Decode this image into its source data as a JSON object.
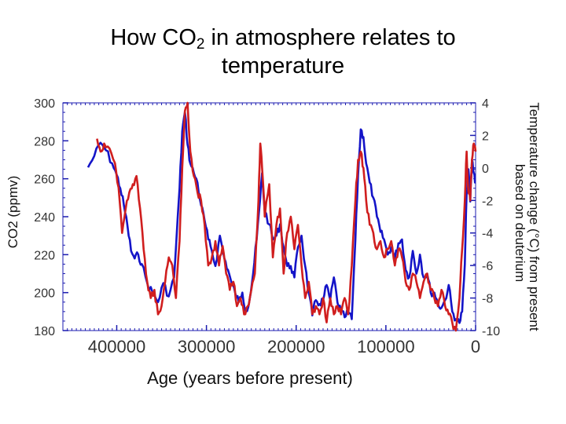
{
  "page": {
    "title_part1": "How CO",
    "title_sub": "2",
    "title_part2": " in atmosphere relates to",
    "title_line2": "temperature"
  },
  "chart_data": {
    "type": "line",
    "xlabel": "Age (years before present)",
    "ylabel_left": "CO2 (ppmv)",
    "ylabel_right_line1": "Temperature change (°C) from present",
    "ylabel_right_line2": "based on deuterium",
    "xlim": [
      460000,
      0
    ],
    "ylim_left": [
      180,
      300
    ],
    "ylim_right": [
      -10,
      4
    ],
    "x_ticks": [
      400000,
      300000,
      200000,
      100000,
      0
    ],
    "x_tick_labels": [
      "400000",
      "300000",
      "200000",
      "100000",
      "0"
    ],
    "y_left_ticks": [
      300,
      280,
      260,
      240,
      220,
      200,
      180
    ],
    "y_left_tick_labels": [
      "300",
      "280",
      "260",
      "240",
      "220",
      "200",
      "180"
    ],
    "y_right_ticks": [
      4,
      2,
      0,
      -2,
      -4,
      -6,
      -8,
      -10
    ],
    "y_right_tick_labels": [
      "4",
      "2",
      "0",
      "-2",
      "-4",
      "-6",
      "-8",
      "-10"
    ],
    "series": [
      {
        "name": "CO2",
        "axis": "left",
        "color": "#1414c8",
        "x": [
          432000,
          425000,
          418000,
          412000,
          405000,
          400000,
          396000,
          392000,
          388000,
          384000,
          380000,
          376000,
          372000,
          366000,
          360000,
          354000,
          348000,
          342000,
          336000,
          330000,
          327000,
          324000,
          321000,
          318000,
          314000,
          310000,
          306000,
          302000,
          298000,
          294000,
          290000,
          285000,
          280000,
          276000,
          272000,
          268000,
          264000,
          260000,
          256000,
          252000,
          248000,
          244000,
          240000,
          238000,
          235000,
          230000,
          226000,
          222000,
          218000,
          214000,
          210000,
          206000,
          202000,
          198000,
          194000,
          190000,
          186000,
          182000,
          178000,
          174000,
          170000,
          166000,
          162000,
          158000,
          154000,
          150000,
          146000,
          142000,
          138000,
          134000,
          131000,
          128000,
          125000,
          122000,
          118000,
          114000,
          110000,
          106000,
          102000,
          98000,
          94000,
          90000,
          86000,
          82000,
          78000,
          74000,
          70000,
          66000,
          62000,
          58000,
          54000,
          50000,
          46000,
          42000,
          38000,
          34000,
          30000,
          26000,
          22000,
          18000,
          15000,
          12000,
          10000,
          8000,
          6000,
          4000,
          2000,
          0
        ],
        "y": [
          266,
          272,
          279,
          275,
          268,
          262,
          255,
          246,
          235,
          222,
          218,
          220,
          215,
          205,
          200,
          195,
          205,
          198,
          208,
          255,
          285,
          295,
          278,
          268,
          263,
          258,
          246,
          238,
          228,
          222,
          214,
          230,
          218,
          212,
          205,
          200,
          195,
          200,
          190,
          196,
          210,
          228,
          250,
          263,
          243,
          236,
          228,
          230,
          236,
          224,
          214,
          214,
          208,
          224,
          230,
          214,
          200,
          188,
          196,
          194,
          196,
          204,
          196,
          208,
          195,
          190,
          187,
          190,
          186,
          228,
          262,
          286,
          282,
          268,
          258,
          250,
          240,
          232,
          228,
          220,
          224,
          218,
          226,
          228,
          212,
          208,
          222,
          210,
          220,
          208,
          210,
          200,
          200,
          194,
          192,
          196,
          204,
          190,
          186,
          184,
          190,
          215,
          252,
          265,
          248,
          270,
          263,
          258
        ]
      },
      {
        "name": "Temperature",
        "axis": "right",
        "color": "#d01e1e",
        "x": [
          422000,
          418000,
          414000,
          408000,
          402000,
          398000,
          394000,
          390000,
          386000,
          382000,
          378000,
          374000,
          370000,
          366000,
          362000,
          358000,
          354000,
          350000,
          346000,
          342000,
          338000,
          334000,
          330000,
          327000,
          324000,
          321000,
          318000,
          314000,
          310000,
          306000,
          302000,
          298000,
          294000,
          290000,
          286000,
          282000,
          278000,
          274000,
          270000,
          266000,
          262000,
          258000,
          254000,
          250000,
          246000,
          242000,
          240000,
          238000,
          235000,
          230000,
          226000,
          222000,
          218000,
          214000,
          210000,
          206000,
          202000,
          198000,
          194000,
          190000,
          186000,
          182000,
          178000,
          174000,
          170000,
          166000,
          162000,
          158000,
          154000,
          150000,
          146000,
          142000,
          138000,
          134000,
          131000,
          128000,
          125000,
          122000,
          118000,
          114000,
          110000,
          106000,
          102000,
          98000,
          94000,
          90000,
          86000,
          82000,
          78000,
          74000,
          70000,
          66000,
          62000,
          58000,
          54000,
          50000,
          46000,
          42000,
          38000,
          34000,
          30000,
          26000,
          22000,
          18000,
          15000,
          12000,
          10000,
          8000,
          6000,
          4000,
          2000,
          0
        ],
        "y": [
          1.8,
          1.0,
          1.5,
          1.2,
          0.3,
          -1.2,
          -4.0,
          -2.5,
          -1.5,
          -1.0,
          -0.5,
          -2.5,
          -5.0,
          -7.0,
          -8.0,
          -7.5,
          -9.0,
          -8.5,
          -7.0,
          -5.5,
          -6.0,
          -8.0,
          -4.5,
          0.0,
          3.5,
          4.0,
          1.0,
          -0.5,
          -1.5,
          -2.0,
          -3.5,
          -6.0,
          -5.5,
          -4.5,
          -6.0,
          -4.8,
          -6.5,
          -7.5,
          -7.0,
          -8.5,
          -8.0,
          -9.0,
          -8.5,
          -7.5,
          -6.5,
          -2.0,
          1.5,
          0.0,
          -3.0,
          -1.0,
          -5.5,
          -3.5,
          -2.5,
          -6.5,
          -4.0,
          -3.0,
          -5.0,
          -3.5,
          -6.0,
          -8.0,
          -7.0,
          -9.0,
          -8.5,
          -9.0,
          -8.0,
          -9.5,
          -8.0,
          -9.0,
          -8.5,
          -9.0,
          -8.0,
          -9.0,
          -6.0,
          -2.0,
          0.5,
          1.0,
          0.0,
          -2.0,
          -3.5,
          -4.0,
          -5.0,
          -4.5,
          -5.5,
          -5.0,
          -4.5,
          -6.0,
          -5.0,
          -5.5,
          -7.0,
          -7.5,
          -6.5,
          -7.0,
          -8.0,
          -7.0,
          -6.5,
          -7.5,
          -8.0,
          -8.5,
          -7.5,
          -8.5,
          -9.0,
          -9.5,
          -10.0,
          -8.0,
          -5.0,
          -2.0,
          1.0,
          -1.5,
          -2.0,
          0.5,
          1.5,
          1.0
        ]
      }
    ]
  }
}
